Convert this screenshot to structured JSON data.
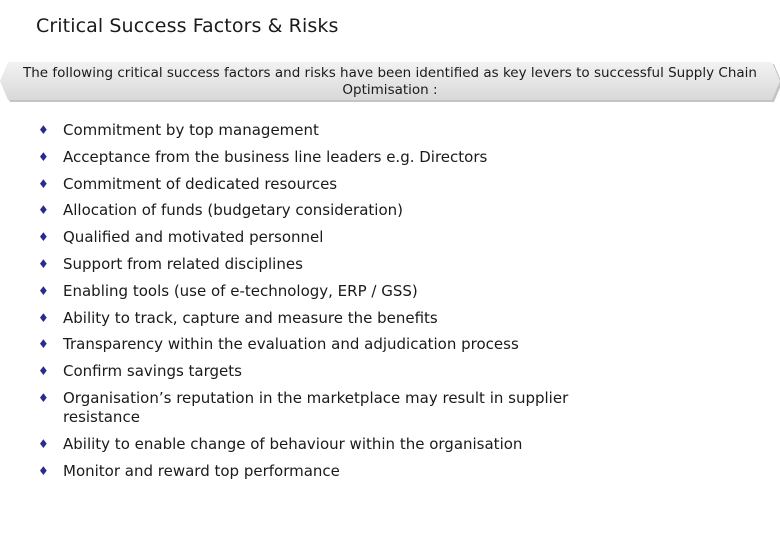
{
  "slide": {
    "title": "Critical Success Factors & Risks",
    "banner": "The following critical success factors and risks have been identified as key levers to successful Supply Chain Optimisation :",
    "bullet_glyph": "♦",
    "bullet_color": "#2b2b8f",
    "items": [
      "Commitment by top management",
      "Acceptance from the business line leaders e.g. Directors",
      "Commitment of dedicated resources",
      "Allocation of funds (budgetary consideration)",
      "Qualified and motivated personnel",
      "Support from related disciplines",
      "Enabling tools (use of e-technology, ERP / GSS)",
      "Ability to track, capture and measure the benefits",
      "Transparency within the evaluation and adjudication process",
      "Confirm savings targets",
      "Organisation’s reputation in the marketplace may result in supplier resistance",
      "Ability to enable change of behaviour within the organisation",
      "Monitor and reward top performance"
    ]
  }
}
